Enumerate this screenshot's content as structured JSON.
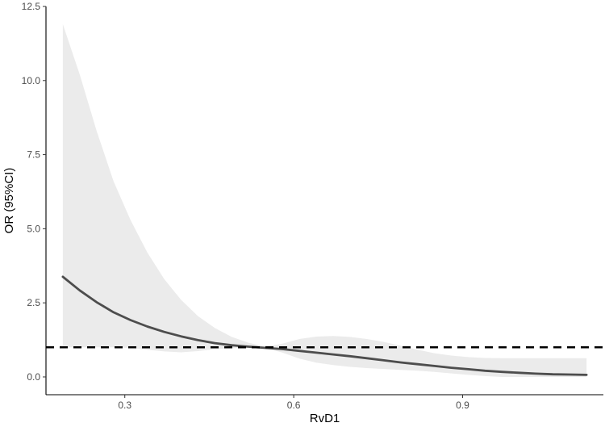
{
  "chart_data": {
    "type": "line",
    "xlabel": "RvD1",
    "ylabel": "OR (95%CI)",
    "xlim": [
      0.16,
      1.15
    ],
    "ylim": [
      -0.6,
      12.5
    ],
    "x_ticks": [
      0.3,
      0.6,
      0.9
    ],
    "x_tick_labels": [
      "0.3",
      "0.6",
      "0.9"
    ],
    "y_ticks": [
      0.0,
      2.5,
      5.0,
      7.5,
      10.0,
      12.5
    ],
    "y_tick_labels": [
      "0.0",
      "2.5",
      "5.0",
      "7.5",
      "10.0",
      "12.5"
    ],
    "grid": false,
    "reference_line": {
      "y": 1.0,
      "style": "dashed"
    },
    "series": [
      {
        "x": [
          0.19,
          0.22,
          0.25,
          0.28,
          0.31,
          0.34,
          0.37,
          0.4,
          0.43,
          0.46,
          0.49,
          0.52,
          0.55,
          0.58,
          0.61,
          0.64,
          0.67,
          0.7,
          0.73,
          0.76,
          0.79,
          0.82,
          0.85,
          0.88,
          0.91,
          0.94,
          0.97,
          1.0,
          1.03,
          1.06,
          1.09,
          1.12
        ],
        "y": [
          3.38,
          2.92,
          2.52,
          2.18,
          1.92,
          1.7,
          1.52,
          1.37,
          1.24,
          1.14,
          1.07,
          1.02,
          0.98,
          0.94,
          0.88,
          0.82,
          0.76,
          0.7,
          0.63,
          0.56,
          0.49,
          0.43,
          0.37,
          0.31,
          0.26,
          0.21,
          0.17,
          0.14,
          0.11,
          0.09,
          0.08,
          0.07
        ],
        "lower": [
          1.0,
          1.0,
          1.0,
          1.0,
          0.98,
          0.92,
          0.86,
          0.83,
          0.87,
          0.94,
          0.97,
          0.99,
          0.98,
          0.82,
          0.62,
          0.48,
          0.4,
          0.34,
          0.3,
          0.27,
          0.24,
          0.21,
          0.17,
          0.12,
          0.07,
          0.03,
          0.0,
          0.0,
          0.0,
          0.0,
          0.0,
          0.0
        ],
        "upper": [
          11.9,
          10.2,
          8.3,
          6.6,
          5.3,
          4.2,
          3.3,
          2.6,
          2.05,
          1.65,
          1.35,
          1.15,
          1.02,
          1.12,
          1.28,
          1.36,
          1.38,
          1.35,
          1.28,
          1.18,
          1.05,
          0.92,
          0.8,
          0.72,
          0.67,
          0.64,
          0.63,
          0.63,
          0.63,
          0.63,
          0.63,
          0.63
        ]
      }
    ],
    "colors": {
      "line": "#4d4d4d",
      "ribbon": "#ebebeb",
      "reference": "#000000",
      "axis": "#000000"
    }
  }
}
